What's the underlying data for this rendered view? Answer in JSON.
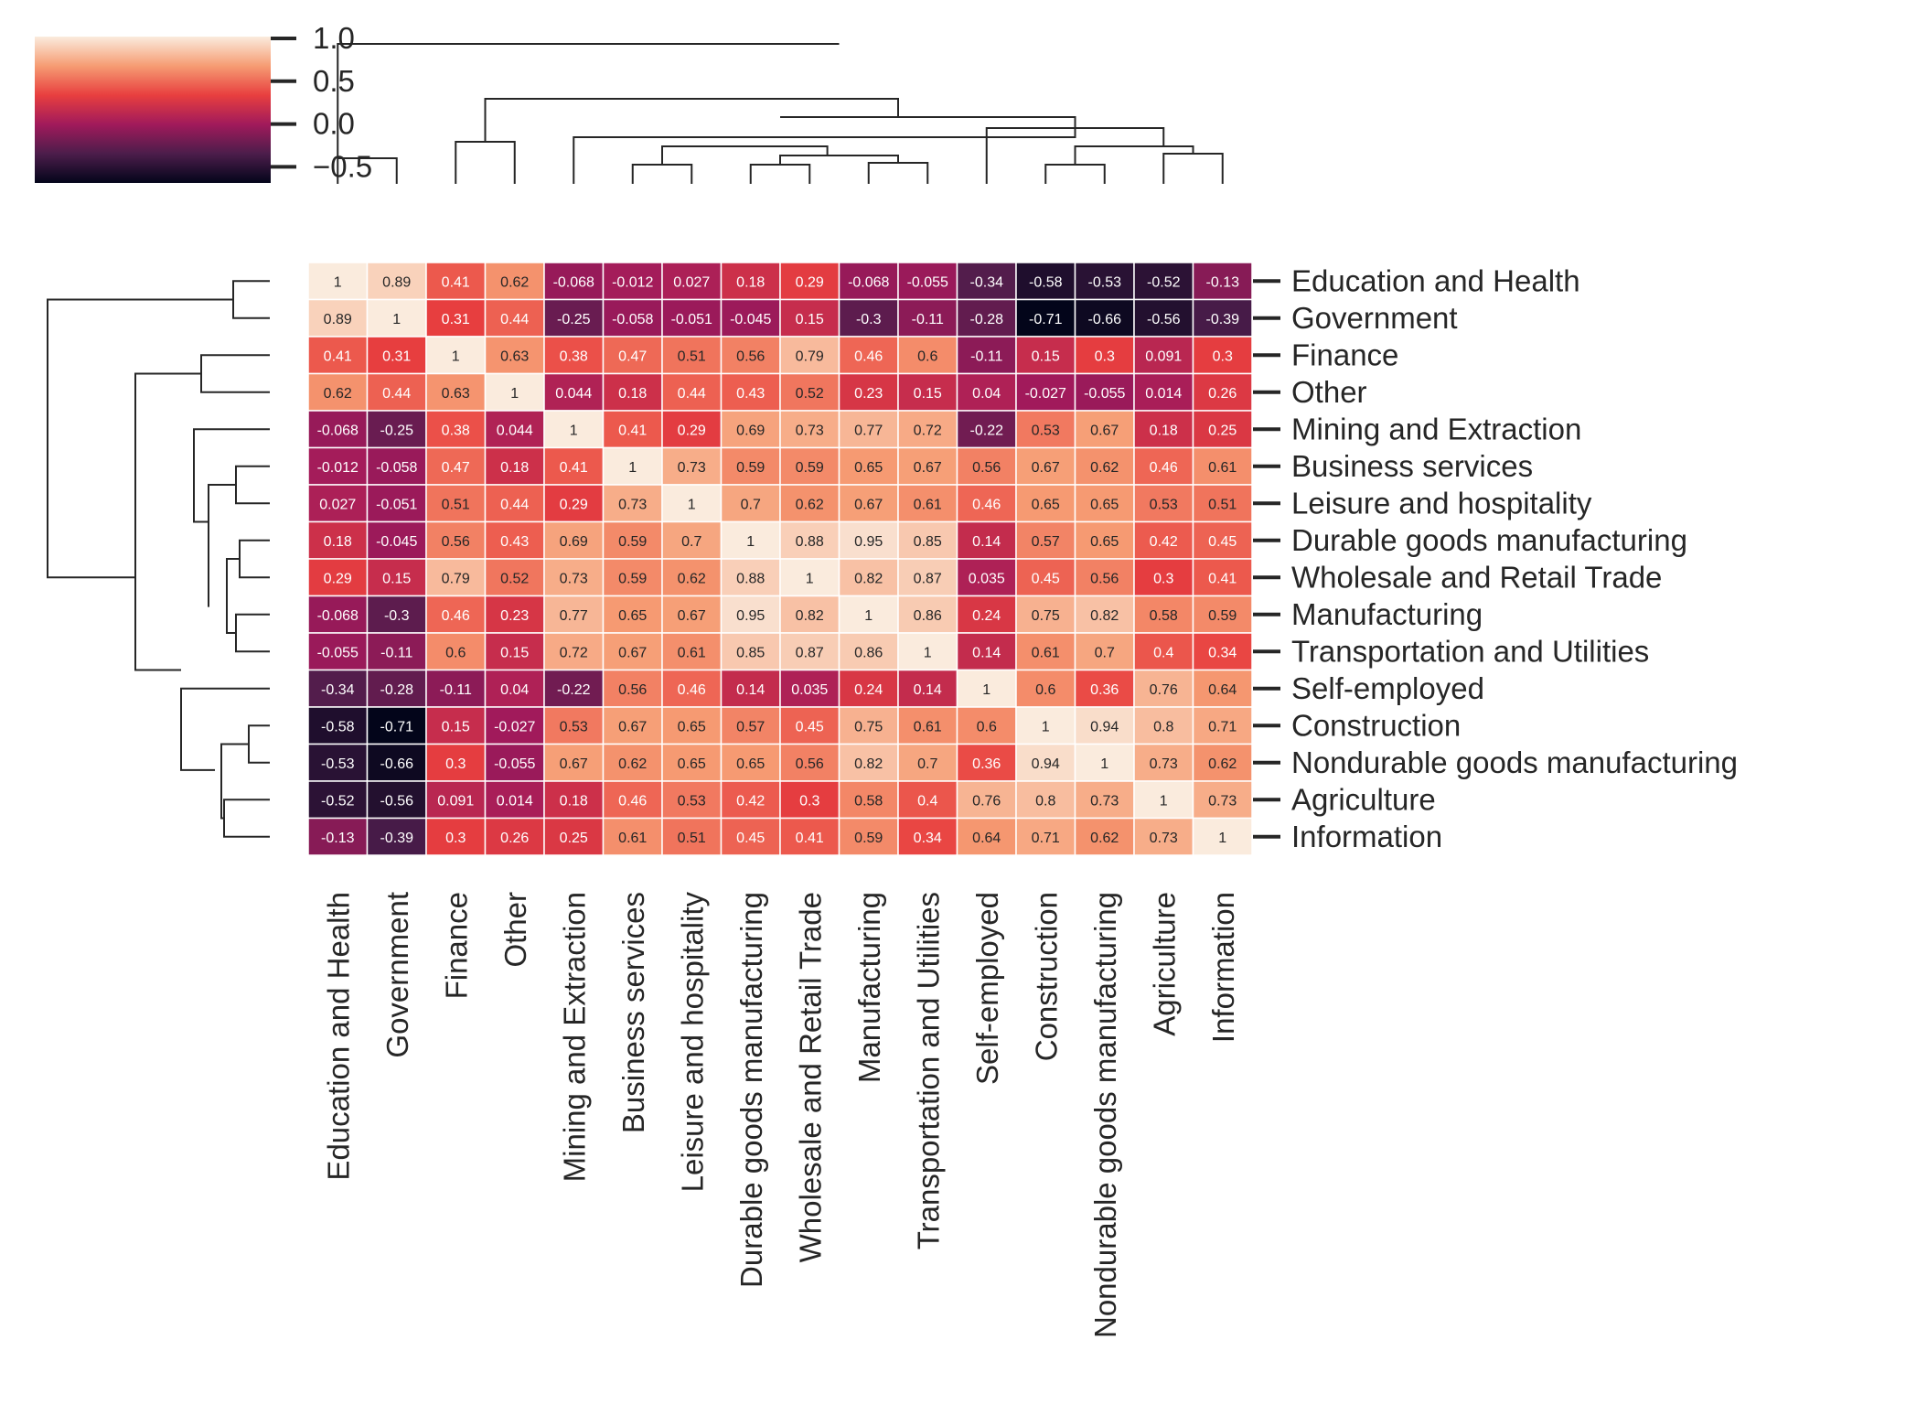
{
  "chart_data": {
    "type": "heatmap",
    "title": "",
    "xlabel": "",
    "ylabel": "",
    "categories": [
      "Education and Health",
      "Government",
      "Finance",
      "Other",
      "Mining and Extraction",
      "Business services",
      "Leisure and hospitality",
      "Durable goods manufacturing",
      "Wholesale and Retail Trade",
      "Manufacturing",
      "Transportation and Utilities",
      "Self-employed",
      "Construction",
      "Nondurable goods manufacturing",
      "Agriculture",
      "Information"
    ],
    "values": [
      [
        "1",
        "0.89",
        "0.41",
        "0.62",
        "-0.068",
        "-0.012",
        "0.027",
        "0.18",
        "0.29",
        "-0.068",
        "-0.055",
        "-0.34",
        "-0.58",
        "-0.53",
        "-0.52",
        "-0.13"
      ],
      [
        "0.89",
        "1",
        "0.31",
        "0.44",
        "-0.25",
        "-0.058",
        "-0.051",
        "-0.045",
        "0.15",
        "-0.3",
        "-0.11",
        "-0.28",
        "-0.71",
        "-0.66",
        "-0.56",
        "-0.39"
      ],
      [
        "0.41",
        "0.31",
        "1",
        "0.63",
        "0.38",
        "0.47",
        "0.51",
        "0.56",
        "0.79",
        "0.46",
        "0.6",
        "-0.11",
        "0.15",
        "0.3",
        "0.091",
        "0.3"
      ],
      [
        "0.62",
        "0.44",
        "0.63",
        "1",
        "0.044",
        "0.18",
        "0.44",
        "0.43",
        "0.52",
        "0.23",
        "0.15",
        "0.04",
        "-0.027",
        "-0.055",
        "0.014",
        "0.26"
      ],
      [
        "-0.068",
        "-0.25",
        "0.38",
        "0.044",
        "1",
        "0.41",
        "0.29",
        "0.69",
        "0.73",
        "0.77",
        "0.72",
        "-0.22",
        "0.53",
        "0.67",
        "0.18",
        "0.25"
      ],
      [
        "-0.012",
        "-0.058",
        "0.47",
        "0.18",
        "0.41",
        "1",
        "0.73",
        "0.59",
        "0.59",
        "0.65",
        "0.67",
        "0.56",
        "0.67",
        "0.62",
        "0.46",
        "0.61"
      ],
      [
        "0.027",
        "-0.051",
        "0.51",
        "0.44",
        "0.29",
        "0.73",
        "1",
        "0.7",
        "0.62",
        "0.67",
        "0.61",
        "0.46",
        "0.65",
        "0.65",
        "0.53",
        "0.51"
      ],
      [
        "0.18",
        "-0.045",
        "0.56",
        "0.43",
        "0.69",
        "0.59",
        "0.7",
        "1",
        "0.88",
        "0.95",
        "0.85",
        "0.14",
        "0.57",
        "0.65",
        "0.42",
        "0.45"
      ],
      [
        "0.29",
        "0.15",
        "0.79",
        "0.52",
        "0.73",
        "0.59",
        "0.62",
        "0.88",
        "1",
        "0.82",
        "0.87",
        "0.035",
        "0.45",
        "0.56",
        "0.3",
        "0.41"
      ],
      [
        "-0.068",
        "-0.3",
        "0.46",
        "0.23",
        "0.77",
        "0.65",
        "0.67",
        "0.95",
        "0.82",
        "1",
        "0.86",
        "0.24",
        "0.75",
        "0.82",
        "0.58",
        "0.59"
      ],
      [
        "-0.055",
        "-0.11",
        "0.6",
        "0.15",
        "0.72",
        "0.67",
        "0.61",
        "0.85",
        "0.87",
        "0.86",
        "1",
        "0.14",
        "0.61",
        "0.7",
        "0.4",
        "0.34"
      ],
      [
        "-0.34",
        "-0.28",
        "-0.11",
        "0.04",
        "-0.22",
        "0.56",
        "0.46",
        "0.14",
        "0.035",
        "0.24",
        "0.14",
        "1",
        "0.6",
        "0.36",
        "0.76",
        "0.64"
      ],
      [
        "-0.58",
        "-0.71",
        "0.15",
        "-0.027",
        "0.53",
        "0.67",
        "0.65",
        "0.57",
        "0.45",
        "0.75",
        "0.61",
        "0.6",
        "1",
        "0.94",
        "0.8",
        "0.71"
      ],
      [
        "-0.53",
        "-0.66",
        "0.3",
        "-0.055",
        "0.67",
        "0.62",
        "0.65",
        "0.65",
        "0.56",
        "0.82",
        "0.7",
        "0.36",
        "0.94",
        "1",
        "0.73",
        "0.62"
      ],
      [
        "-0.52",
        "-0.56",
        "0.091",
        "0.014",
        "0.18",
        "0.46",
        "0.53",
        "0.42",
        "0.3",
        "0.58",
        "0.4",
        "0.76",
        "0.8",
        "0.73",
        "1",
        "0.73"
      ],
      [
        "-0.13",
        "-0.39",
        "0.3",
        "0.26",
        "0.25",
        "0.61",
        "0.51",
        "0.45",
        "0.41",
        "0.59",
        "0.34",
        "0.64",
        "0.71",
        "0.62",
        "0.73",
        "1"
      ]
    ],
    "colorbar": {
      "ticks": [
        "1.0",
        "0.5",
        "0.0",
        "−0.5"
      ],
      "range": [
        -0.71,
        1.0
      ],
      "colormap": "rocket",
      "colors": [
        "#03051a",
        "#4c1d4b",
        "#a11a5b",
        "#e83f3f",
        "#f69c73",
        "#faebdd"
      ]
    },
    "dendrograms": [
      "row",
      "column"
    ],
    "cell_border_color": "#ffffff"
  }
}
